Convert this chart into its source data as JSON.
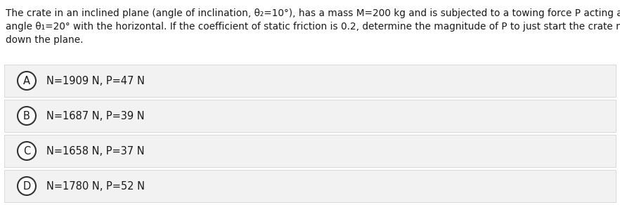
{
  "title_line1": "The crate in an inclined plane (angle of inclination, θ₂=10°), has a mass M=200 kg and is subjected to a towing force P acting at an",
  "title_line2": "angle θ₁=20° with the horizontal. If the coefficient of static friction is 0.2, determine the magnitude of P to just start the crate moving",
  "title_line3": "down the plane.",
  "options": [
    {
      "label": "A",
      "text": "N=1909 N, P=47 N"
    },
    {
      "label": "B",
      "text": "N=1687 N, P=39 N"
    },
    {
      "label": "C",
      "text": "N=1658 N, P=37 N"
    },
    {
      "label": "D",
      "text": "N=1780 N, P=52 N"
    }
  ],
  "bg_color": "#ffffff",
  "option_bg_color": "#f2f2f2",
  "option_border_color": "#cccccc",
  "text_color": "#1a1a1a",
  "circle_edge_color": "#333333",
  "circle_face_color": "#ffffff",
  "title_fontsize": 9.8,
  "option_fontsize": 10.5,
  "label_fontsize": 10.5,
  "fig_width": 8.82,
  "fig_height": 2.92,
  "dpi": 100
}
